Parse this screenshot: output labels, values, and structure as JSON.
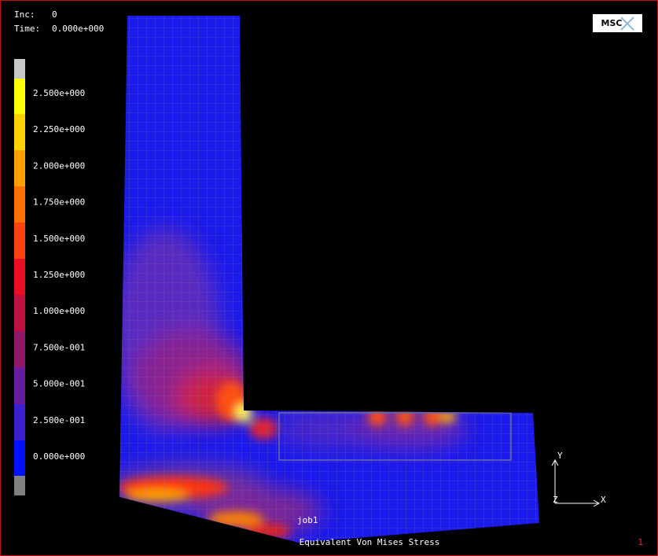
{
  "status": {
    "inc_label": "Inc:",
    "inc_value": "0",
    "time_label": "Time:",
    "time_value": "0.000e+000"
  },
  "logo": "MSC",
  "legend": {
    "labels": [
      "2.500e+000",
      "2.250e+000",
      "2.000e+000",
      "1.750e+000",
      "1.500e+000",
      "1.250e+000",
      "1.000e+000",
      "7.500e-001",
      "5.000e-001",
      "2.500e-001",
      "0.000e+000"
    ]
  },
  "job": "job1",
  "result_title": "Equivalent Von Mises Stress",
  "window_number": "1",
  "axes": {
    "y": "Y",
    "z": "Z",
    "x": "X"
  }
}
